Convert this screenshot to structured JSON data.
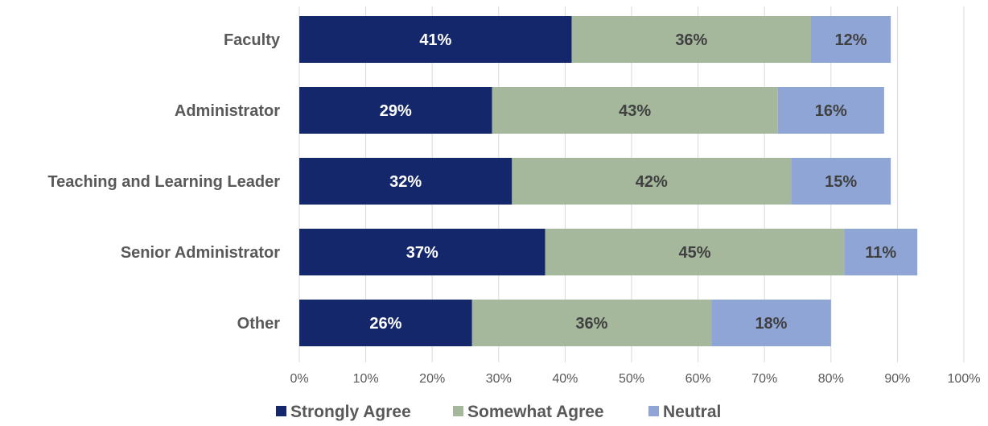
{
  "chart_data": {
    "type": "bar",
    "orientation": "horizontal",
    "stacked": true,
    "categories": [
      "Faculty",
      "Administrator",
      "Teaching and Learning Leader",
      "Senior Administrator",
      "Other"
    ],
    "series": [
      {
        "name": "Strongly Agree",
        "color": "#14276b",
        "label_color": "#ffffff",
        "values": [
          41,
          29,
          32,
          37,
          26
        ]
      },
      {
        "name": "Somewhat Agree",
        "color": "#a5b89c",
        "label_color": "#404040",
        "values": [
          36,
          43,
          42,
          45,
          36
        ]
      },
      {
        "name": "Neutral",
        "color": "#8fa5d6",
        "label_color": "#404040",
        "values": [
          12,
          16,
          15,
          11,
          18
        ]
      }
    ],
    "value_suffix": "%",
    "xlim": [
      0,
      100
    ],
    "xticks": [
      "0%",
      "10%",
      "20%",
      "30%",
      "40%",
      "50%",
      "60%",
      "70%",
      "80%",
      "90%",
      "100%"
    ],
    "grid": true,
    "legend_position": "bottom"
  }
}
